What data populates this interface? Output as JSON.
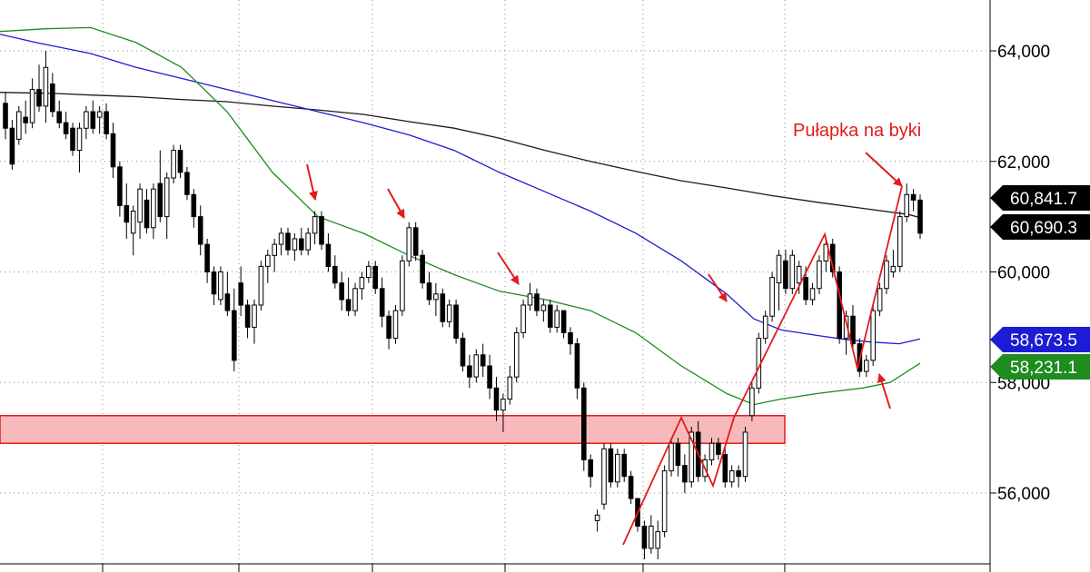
{
  "chart_data": {
    "type": "candlestick",
    "title": "",
    "xlabel": "",
    "ylabel": "",
    "ylim": [
      54700,
      65000
    ],
    "y_ticks": [
      "64,000",
      "62,000",
      "60,000",
      "58,000",
      "56,000"
    ],
    "y_tick_values": [
      64000,
      62000,
      60000,
      58000,
      56000
    ],
    "grid": {
      "horizontal": "dotted",
      "vertical": "dotted"
    },
    "candles": [
      [
        63050,
        63250,
        62400,
        62600
      ],
      [
        62600,
        62750,
        61850,
        61950
      ],
      [
        62400,
        63000,
        62300,
        62900
      ],
      [
        62800,
        63100,
        62500,
        62700
      ],
      [
        62700,
        63500,
        62600,
        63300
      ],
      [
        63300,
        63750,
        62900,
        63000
      ],
      [
        63000,
        64000,
        62700,
        63700
      ],
      [
        63400,
        63600,
        62800,
        62900
      ],
      [
        62900,
        63100,
        62600,
        62700
      ],
      [
        62700,
        62900,
        62400,
        62500
      ],
      [
        62600,
        62700,
        62100,
        62200
      ],
      [
        62200,
        62700,
        61800,
        62600
      ],
      [
        62600,
        63000,
        62400,
        62900
      ],
      [
        62900,
        63100,
        62500,
        62600
      ],
      [
        62800,
        63000,
        62500,
        62900
      ],
      [
        62900,
        63050,
        62400,
        62500
      ],
      [
        62500,
        62700,
        61700,
        61900
      ],
      [
        61900,
        62000,
        61000,
        61200
      ],
      [
        61200,
        61600,
        60600,
        60900
      ],
      [
        60700,
        61200,
        60300,
        61100
      ],
      [
        60900,
        61600,
        60600,
        61500
      ],
      [
        61300,
        61500,
        60700,
        60800
      ],
      [
        60800,
        61600,
        60600,
        61500
      ],
      [
        61600,
        62200,
        60900,
        61000
      ],
      [
        61000,
        61800,
        60600,
        61700
      ],
      [
        61700,
        62300,
        61600,
        62200
      ],
      [
        62200,
        62300,
        61700,
        61800
      ],
      [
        61800,
        61900,
        61300,
        61400
      ],
      [
        61400,
        61500,
        60800,
        61000
      ],
      [
        61000,
        61200,
        60300,
        60500
      ],
      [
        60500,
        60600,
        59800,
        60000
      ],
      [
        60000,
        60100,
        59400,
        59600
      ],
      [
        59500,
        60100,
        59400,
        60000
      ],
      [
        59600,
        60000,
        59200,
        59300
      ],
      [
        59300,
        59700,
        58200,
        58400
      ],
      [
        59800,
        60100,
        59200,
        59400
      ],
      [
        59400,
        59500,
        58800,
        59000
      ],
      [
        59000,
        59500,
        58700,
        59400
      ],
      [
        59400,
        60200,
        59300,
        60100
      ],
      [
        60100,
        60400,
        59800,
        60300
      ],
      [
        60300,
        60600,
        60000,
        60500
      ],
      [
        60500,
        60800,
        60300,
        60700
      ],
      [
        60700,
        60800,
        60300,
        60400
      ],
      [
        60400,
        60700,
        60200,
        60600
      ],
      [
        60600,
        60800,
        60300,
        60400
      ],
      [
        60400,
        60800,
        60300,
        60700
      ],
      [
        60700,
        61100,
        60500,
        61000
      ],
      [
        61000,
        61100,
        60400,
        60500
      ],
      [
        60500,
        60700,
        60000,
        60100
      ],
      [
        60100,
        60300,
        59700,
        59800
      ],
      [
        59800,
        60000,
        59300,
        59500
      ],
      [
        59500,
        59900,
        59200,
        59300
      ],
      [
        59300,
        59800,
        59200,
        59700
      ],
      [
        59700,
        60000,
        59500,
        59900
      ],
      [
        59900,
        60200,
        59800,
        60100
      ],
      [
        60100,
        60200,
        59600,
        59700
      ],
      [
        59700,
        59900,
        59000,
        59200
      ],
      [
        59200,
        59300,
        58600,
        58800
      ],
      [
        58800,
        59400,
        58700,
        59300
      ],
      [
        59300,
        60300,
        59200,
        60200
      ],
      [
        60200,
        60900,
        60100,
        60800
      ],
      [
        60800,
        60900,
        60200,
        60300
      ],
      [
        60300,
        60400,
        59700,
        59800
      ],
      [
        59800,
        60000,
        59400,
        59500
      ],
      [
        59500,
        59800,
        59200,
        59600
      ],
      [
        59600,
        59700,
        59000,
        59100
      ],
      [
        59100,
        59500,
        59000,
        59400
      ],
      [
        59400,
        59500,
        58700,
        58800
      ],
      [
        58800,
        58900,
        58200,
        58300
      ],
      [
        58300,
        58500,
        57900,
        58100
      ],
      [
        58100,
        58600,
        58000,
        58500
      ],
      [
        58500,
        58700,
        58100,
        58300
      ],
      [
        58300,
        58500,
        57700,
        57900
      ],
      [
        57900,
        58100,
        57300,
        57500
      ],
      [
        57500,
        57800,
        57100,
        57700
      ],
      [
        57700,
        58300,
        57600,
        58100
      ],
      [
        58100,
        59000,
        58000,
        58900
      ],
      [
        58900,
        59500,
        58800,
        59400
      ],
      [
        59400,
        59800,
        59300,
        59600
      ],
      [
        59600,
        59700,
        59200,
        59300
      ],
      [
        59300,
        59500,
        59100,
        59400
      ],
      [
        59400,
        59500,
        58900,
        59000
      ],
      [
        59000,
        59400,
        58900,
        59300
      ],
      [
        59300,
        59300,
        58800,
        58900
      ],
      [
        58900,
        59000,
        58500,
        58700
      ],
      [
        58700,
        58800,
        57700,
        57900
      ],
      [
        57900,
        58000,
        56400,
        56600
      ],
      [
        56600,
        56700,
        56100,
        56300
      ],
      [
        55500,
        55700,
        55300,
        55600
      ],
      [
        55800,
        56900,
        55700,
        56800
      ],
      [
        56800,
        56900,
        56100,
        56200
      ],
      [
        56200,
        56800,
        56100,
        56700
      ],
      [
        56700,
        56800,
        56200,
        56300
      ],
      [
        56300,
        56400,
        55800,
        55900
      ],
      [
        55900,
        55900,
        55300,
        55400
      ],
      [
        55400,
        55500,
        54800,
        55000
      ],
      [
        55000,
        55600,
        54900,
        55400
      ],
      [
        55000,
        55500,
        54800,
        55300
      ],
      [
        55300,
        56500,
        55200,
        56400
      ],
      [
        56400,
        57000,
        56300,
        56900
      ],
      [
        56900,
        57000,
        56300,
        56500
      ],
      [
        56500,
        56700,
        56000,
        56200
      ],
      [
        56200,
        57200,
        56100,
        57100
      ],
      [
        57100,
        57300,
        56200,
        56300
      ],
      [
        56300,
        56700,
        56200,
        56600
      ],
      [
        56600,
        57000,
        56500,
        56900
      ],
      [
        56900,
        57000,
        56600,
        56700
      ],
      [
        56700,
        56800,
        56100,
        56200
      ],
      [
        56200,
        56500,
        56100,
        56400
      ],
      [
        56400,
        56500,
        56100,
        56300
      ],
      [
        56300,
        57200,
        56200,
        57100
      ],
      [
        57400,
        58000,
        57300,
        57900
      ],
      [
        57900,
        58900,
        57800,
        58800
      ],
      [
        58800,
        59300,
        58700,
        59200
      ],
      [
        59200,
        60000,
        59100,
        59900
      ],
      [
        59800,
        60400,
        59300,
        60300
      ],
      [
        60200,
        60400,
        59600,
        59700
      ],
      [
        59700,
        60400,
        59600,
        60300
      ],
      [
        59800,
        60200,
        59600,
        60100
      ],
      [
        59900,
        60100,
        59400,
        59500
      ],
      [
        59500,
        59800,
        59400,
        59700
      ],
      [
        59700,
        60300,
        59600,
        60200
      ],
      [
        60200,
        60600,
        60000,
        60500
      ],
      [
        60500,
        60600,
        59900,
        60000
      ],
      [
        60000,
        60100,
        58700,
        58800
      ],
      [
        58800,
        59300,
        58500,
        59200
      ],
      [
        59200,
        59400,
        58600,
        58700
      ],
      [
        58700,
        58800,
        58100,
        58200
      ],
      [
        58200,
        58500,
        58100,
        58400
      ],
      [
        58400,
        59400,
        58300,
        59300
      ],
      [
        59300,
        59800,
        59200,
        59700
      ],
      [
        59700,
        60300,
        59600,
        60200
      ],
      [
        60000,
        60400,
        59900,
        60100
      ],
      [
        60100,
        61100,
        60000,
        61000
      ],
      [
        61000,
        61600,
        60900,
        61400
      ],
      [
        61400,
        61500,
        61100,
        61300
      ],
      [
        61300,
        61400,
        60600,
        60700
      ]
    ],
    "series": [
      {
        "name": "",
        "color": "#1a1a1a",
        "values": [
          [
            0,
            63250
          ],
          [
            30,
            63240
          ],
          [
            60,
            63230
          ],
          [
            100,
            63200
          ],
          [
            150,
            63170
          ],
          [
            200,
            63120
          ],
          [
            250,
            63080
          ],
          [
            300,
            63000
          ],
          [
            350,
            62930
          ],
          [
            400,
            62850
          ],
          [
            450,
            62720
          ],
          [
            500,
            62600
          ],
          [
            550,
            62420
          ],
          [
            600,
            62200
          ],
          [
            650,
            62000
          ],
          [
            700,
            61820
          ],
          [
            750,
            61650
          ],
          [
            800,
            61520
          ],
          [
            850,
            61380
          ],
          [
            900,
            61260
          ],
          [
            950,
            61150
          ],
          [
            1000,
            61040
          ],
          [
            1013,
            60980
          ]
        ]
      },
      {
        "name": "",
        "color": "#1c1cd4",
        "values": [
          [
            0,
            64300
          ],
          [
            40,
            64150
          ],
          [
            100,
            63950
          ],
          [
            150,
            63700
          ],
          [
            200,
            63500
          ],
          [
            250,
            63300
          ],
          [
            300,
            63100
          ],
          [
            350,
            62900
          ],
          [
            400,
            62700
          ],
          [
            450,
            62480
          ],
          [
            500,
            62200
          ],
          [
            550,
            61800
          ],
          [
            600,
            61450
          ],
          [
            650,
            61100
          ],
          [
            700,
            60700
          ],
          [
            750,
            60200
          ],
          [
            800,
            59600
          ],
          [
            830,
            59150
          ],
          [
            860,
            58950
          ],
          [
            900,
            58850
          ],
          [
            930,
            58780
          ],
          [
            960,
            58730
          ],
          [
            990,
            58700
          ],
          [
            1013,
            58790
          ]
        ]
      },
      {
        "name": "",
        "color": "#1e8c1e",
        "values": [
          [
            0,
            64350
          ],
          [
            50,
            64400
          ],
          [
            100,
            64420
          ],
          [
            150,
            64150
          ],
          [
            200,
            63700
          ],
          [
            250,
            62900
          ],
          [
            300,
            61800
          ],
          [
            350,
            61000
          ],
          [
            400,
            60700
          ],
          [
            450,
            60300
          ],
          [
            500,
            59950
          ],
          [
            550,
            59650
          ],
          [
            600,
            59500
          ],
          [
            650,
            59300
          ],
          [
            700,
            58900
          ],
          [
            750,
            58300
          ],
          [
            800,
            57800
          ],
          [
            830,
            57600
          ],
          [
            860,
            57700
          ],
          [
            900,
            57800
          ],
          [
            950,
            57900
          ],
          [
            980,
            58000
          ],
          [
            1013,
            58350
          ]
        ]
      }
    ],
    "price_badges": [
      {
        "text": "60,841.7",
        "bg": "#000000",
        "fg": "#ffffff",
        "value": 60841.7
      },
      {
        "text": "60,690.3",
        "bg": "#000000",
        "fg": "#ffffff",
        "value": 60690.3
      },
      {
        "text": "58,673.5",
        "bg": "#1c1cd4",
        "fg": "#ffffff",
        "value": 58673.5
      },
      {
        "text": "58,231.1",
        "bg": "#1e8c1e",
        "fg": "#ffffff",
        "value": 58231.1
      }
    ],
    "support_zone": {
      "from": 56900,
      "to": 57400,
      "fill": "#f7b9bc",
      "stroke": "#e21b1b"
    },
    "annotation": {
      "text": "Pułapka na byki",
      "color": "#e21b1b"
    },
    "colors": {
      "up": "#ffffff",
      "down": "#000000",
      "annotation": "#e21b1b",
      "grid": "#8c8c8c"
    }
  }
}
